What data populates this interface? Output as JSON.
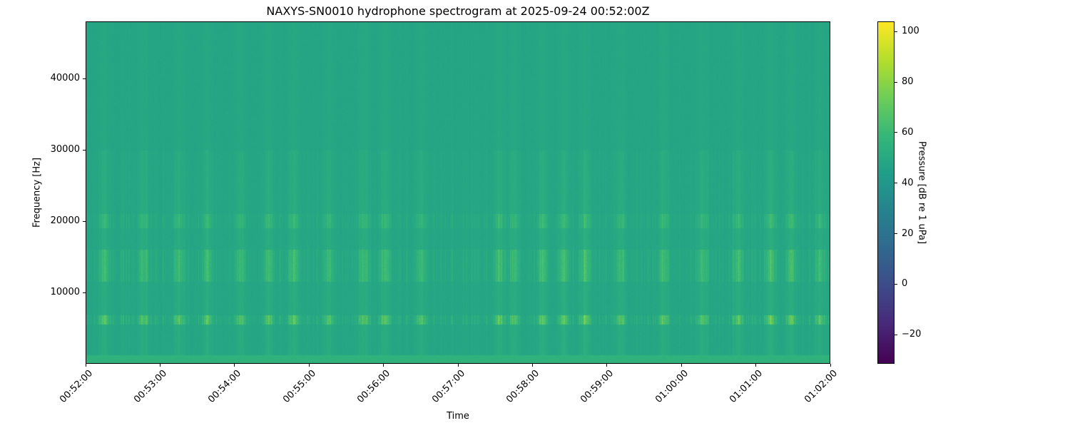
{
  "chart_data": {
    "type": "heatmap",
    "title": "NAXYS-SN0010 hydrophone spectrogram at 2025-09-24 00:52:00Z",
    "xlabel": "Time",
    "ylabel": "Frequency [Hz]",
    "x_ticks": [
      "00:52:00",
      "00:53:00",
      "00:54:00",
      "00:55:00",
      "00:56:00",
      "00:57:00",
      "00:58:00",
      "00:59:00",
      "01:00:00",
      "01:01:00",
      "01:02:00"
    ],
    "y_ticks": [
      10000,
      20000,
      30000,
      40000
    ],
    "ylim": [
      0,
      48000
    ],
    "colormap": "viridis",
    "colorbar": {
      "label": "Pressure [dB re 1 uPa]",
      "range": [
        -31.5,
        104
      ],
      "ticks": [
        -20,
        0,
        20,
        40,
        60,
        80,
        100
      ]
    },
    "background_level_db": 48,
    "low_frequency_level_db": 55,
    "bands_hz": [
      {
        "from": 5500,
        "to": 6800,
        "peak_db": 75
      },
      {
        "from": 11500,
        "to": 16000,
        "peak_db": 64
      },
      {
        "from": 19000,
        "to": 21000,
        "peak_db": 60
      }
    ],
    "event_times": [
      "00:52:14",
      "00:52:46",
      "00:53:15",
      "00:53:38",
      "00:54:04",
      "00:54:27",
      "00:54:47",
      "00:55:15",
      "00:55:44",
      "00:56:01",
      "00:56:30",
      "00:57:33",
      "00:57:45",
      "00:58:08",
      "00:58:25",
      "00:58:42",
      "00:59:11",
      "00:59:46",
      "01:00:17",
      "01:00:46",
      "01:01:12",
      "01:01:29",
      "01:01:52"
    ]
  }
}
